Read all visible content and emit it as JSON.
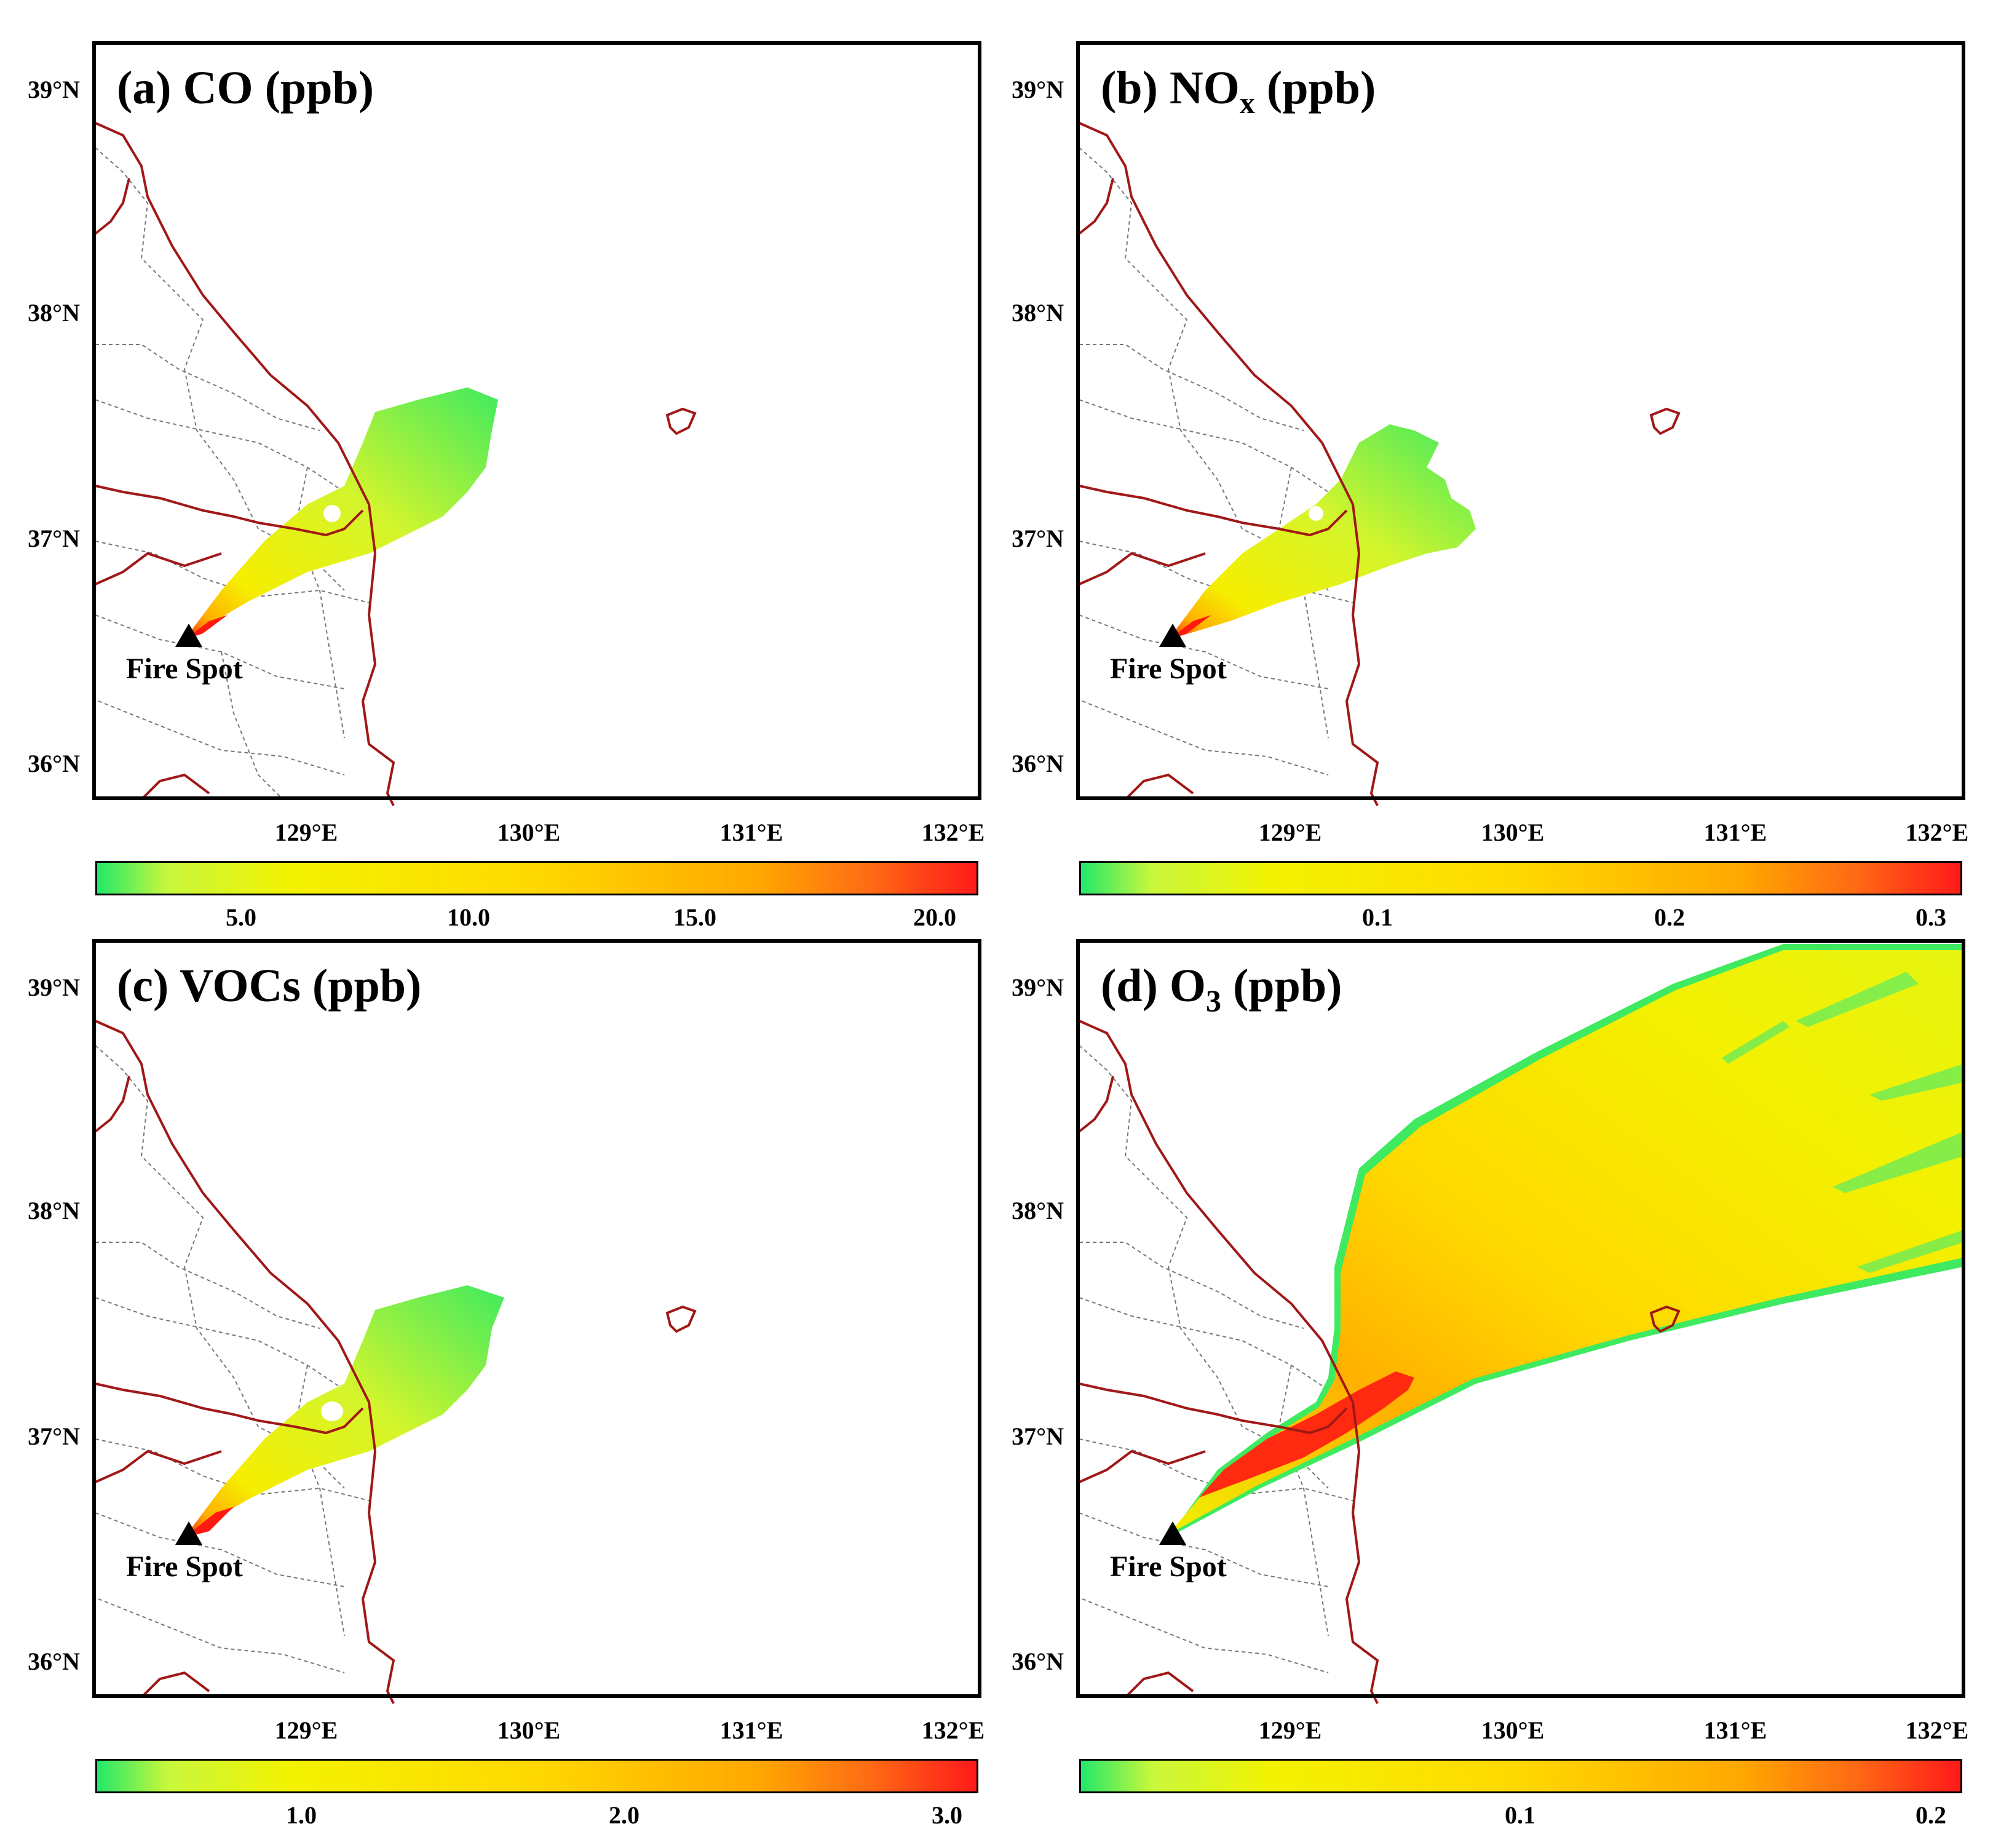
{
  "panels": {
    "a": {
      "title": "(a) CO (ppb)",
      "colorbar": [
        "5.0",
        "10.0",
        "15.0",
        "20.0"
      ]
    },
    "b": {
      "title_main": "(b) NO",
      "title_sub": "x",
      "title_end": " (ppb)",
      "colorbar": [
        "0.1",
        "0.2",
        "0.3"
      ]
    },
    "c": {
      "title": "(c) VOCs (ppb)",
      "colorbar": [
        "1.0",
        "2.0",
        "3.0"
      ]
    },
    "d": {
      "title_main": "(d) O",
      "title_sub": "3",
      "title_end": " (ppb)",
      "colorbar": [
        "0.1",
        "0.2"
      ]
    }
  },
  "lat_labels": [
    "39°N",
    "38°N",
    "37°N",
    "36°N"
  ],
  "lon_labels": [
    "129°E",
    "130°E",
    "131°E",
    "132°E"
  ],
  "fire_label": "Fire Spot",
  "colors": {
    "low": "#22e86a",
    "mid": "#f4f200",
    "high": "#ff1a1a",
    "coast": "#a01818",
    "admin": "#777777"
  }
}
